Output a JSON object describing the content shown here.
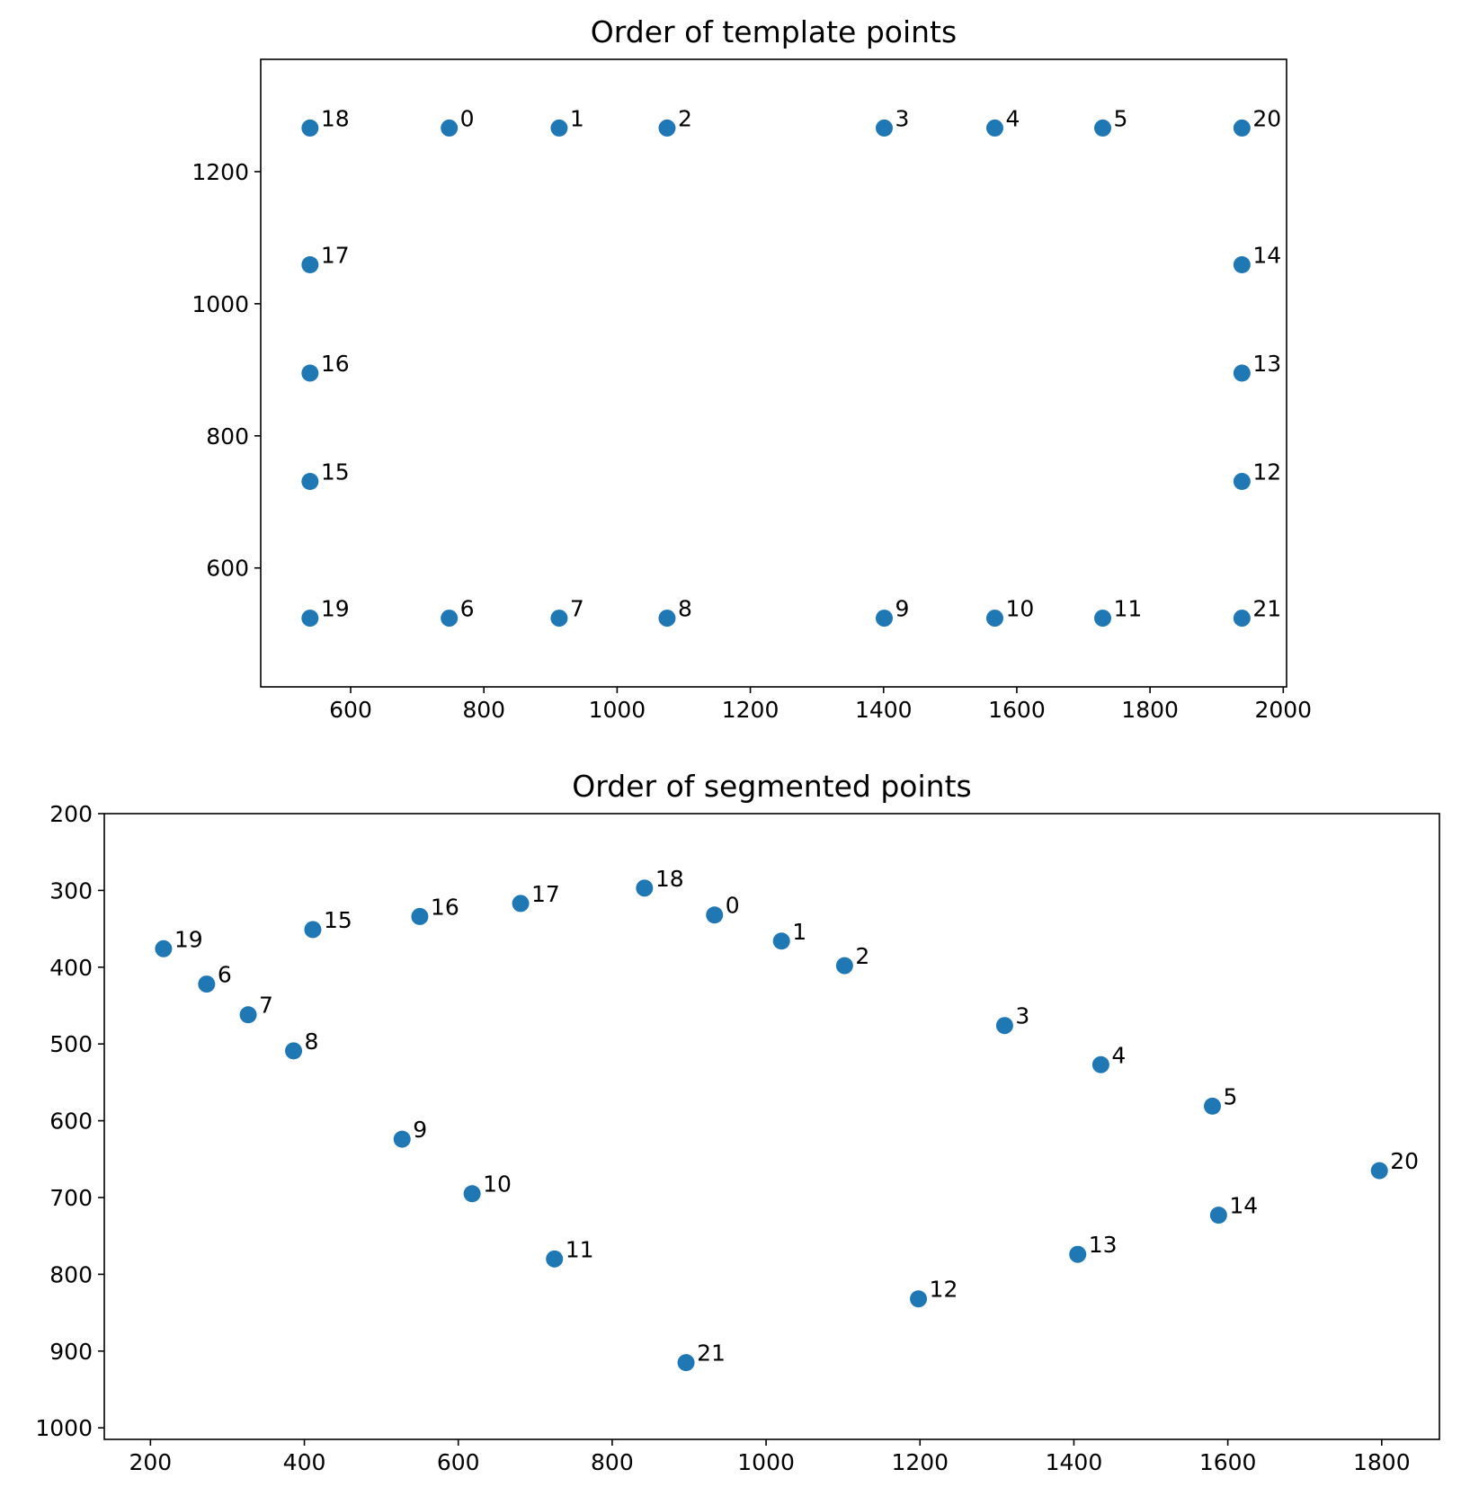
{
  "chart_data": [
    {
      "type": "scatter",
      "title": "Order of template points",
      "xlabel": "",
      "ylabel": "",
      "xlim": [
        465,
        2005
      ],
      "ylim": [
        420,
        1370
      ],
      "y_inverted": false,
      "xticks": [
        600,
        800,
        1000,
        1200,
        1400,
        1600,
        1800,
        2000
      ],
      "yticks": [
        600,
        800,
        1000,
        1200
      ],
      "grid": false,
      "color": "#1f77b4",
      "points": [
        {
          "label": "0",
          "x": 748,
          "y": 1266
        },
        {
          "label": "1",
          "x": 913,
          "y": 1266
        },
        {
          "label": "2",
          "x": 1075,
          "y": 1266
        },
        {
          "label": "3",
          "x": 1401,
          "y": 1266
        },
        {
          "label": "4",
          "x": 1567,
          "y": 1266
        },
        {
          "label": "5",
          "x": 1729,
          "y": 1266
        },
        {
          "label": "6",
          "x": 748,
          "y": 524
        },
        {
          "label": "7",
          "x": 913,
          "y": 524
        },
        {
          "label": "8",
          "x": 1075,
          "y": 524
        },
        {
          "label": "9",
          "x": 1401,
          "y": 524
        },
        {
          "label": "10",
          "x": 1567,
          "y": 524
        },
        {
          "label": "11",
          "x": 1729,
          "y": 524
        },
        {
          "label": "12",
          "x": 1938,
          "y": 731
        },
        {
          "label": "13",
          "x": 1938,
          "y": 895
        },
        {
          "label": "14",
          "x": 1938,
          "y": 1059
        },
        {
          "label": "15",
          "x": 539,
          "y": 731
        },
        {
          "label": "16",
          "x": 539,
          "y": 895
        },
        {
          "label": "17",
          "x": 539,
          "y": 1059
        },
        {
          "label": "18",
          "x": 539,
          "y": 1266
        },
        {
          "label": "19",
          "x": 539,
          "y": 524
        },
        {
          "label": "20",
          "x": 1938,
          "y": 1266
        },
        {
          "label": "21",
          "x": 1938,
          "y": 524
        }
      ]
    },
    {
      "type": "scatter",
      "title": "Order of segmented points",
      "xlabel": "",
      "ylabel": "",
      "xlim": [
        140,
        1875
      ],
      "ylim": [
        1015,
        200
      ],
      "y_inverted": true,
      "xticks": [
        200,
        400,
        600,
        800,
        1000,
        1200,
        1400,
        1600,
        1800
      ],
      "yticks": [
        200,
        300,
        400,
        500,
        600,
        700,
        800,
        900,
        1000
      ],
      "grid": false,
      "color": "#1f77b4",
      "points": [
        {
          "label": "0",
          "x": 933,
          "y": 332
        },
        {
          "label": "1",
          "x": 1020,
          "y": 366
        },
        {
          "label": "2",
          "x": 1102,
          "y": 398
        },
        {
          "label": "3",
          "x": 1310,
          "y": 476
        },
        {
          "label": "4",
          "x": 1435,
          "y": 527
        },
        {
          "label": "5",
          "x": 1580,
          "y": 581
        },
        {
          "label": "6",
          "x": 273,
          "y": 422
        },
        {
          "label": "7",
          "x": 327,
          "y": 462
        },
        {
          "label": "8",
          "x": 386,
          "y": 509
        },
        {
          "label": "9",
          "x": 527,
          "y": 624
        },
        {
          "label": "10",
          "x": 618,
          "y": 695
        },
        {
          "label": "11",
          "x": 725,
          "y": 780
        },
        {
          "label": "12",
          "x": 1198,
          "y": 832
        },
        {
          "label": "13",
          "x": 1405,
          "y": 774
        },
        {
          "label": "14",
          "x": 1588,
          "y": 723
        },
        {
          "label": "15",
          "x": 411,
          "y": 351
        },
        {
          "label": "16",
          "x": 550,
          "y": 334
        },
        {
          "label": "17",
          "x": 681,
          "y": 317
        },
        {
          "label": "18",
          "x": 842,
          "y": 297
        },
        {
          "label": "19",
          "x": 217,
          "y": 376
        },
        {
          "label": "20",
          "x": 1797,
          "y": 665
        },
        {
          "label": "21",
          "x": 896,
          "y": 915
        }
      ]
    }
  ]
}
